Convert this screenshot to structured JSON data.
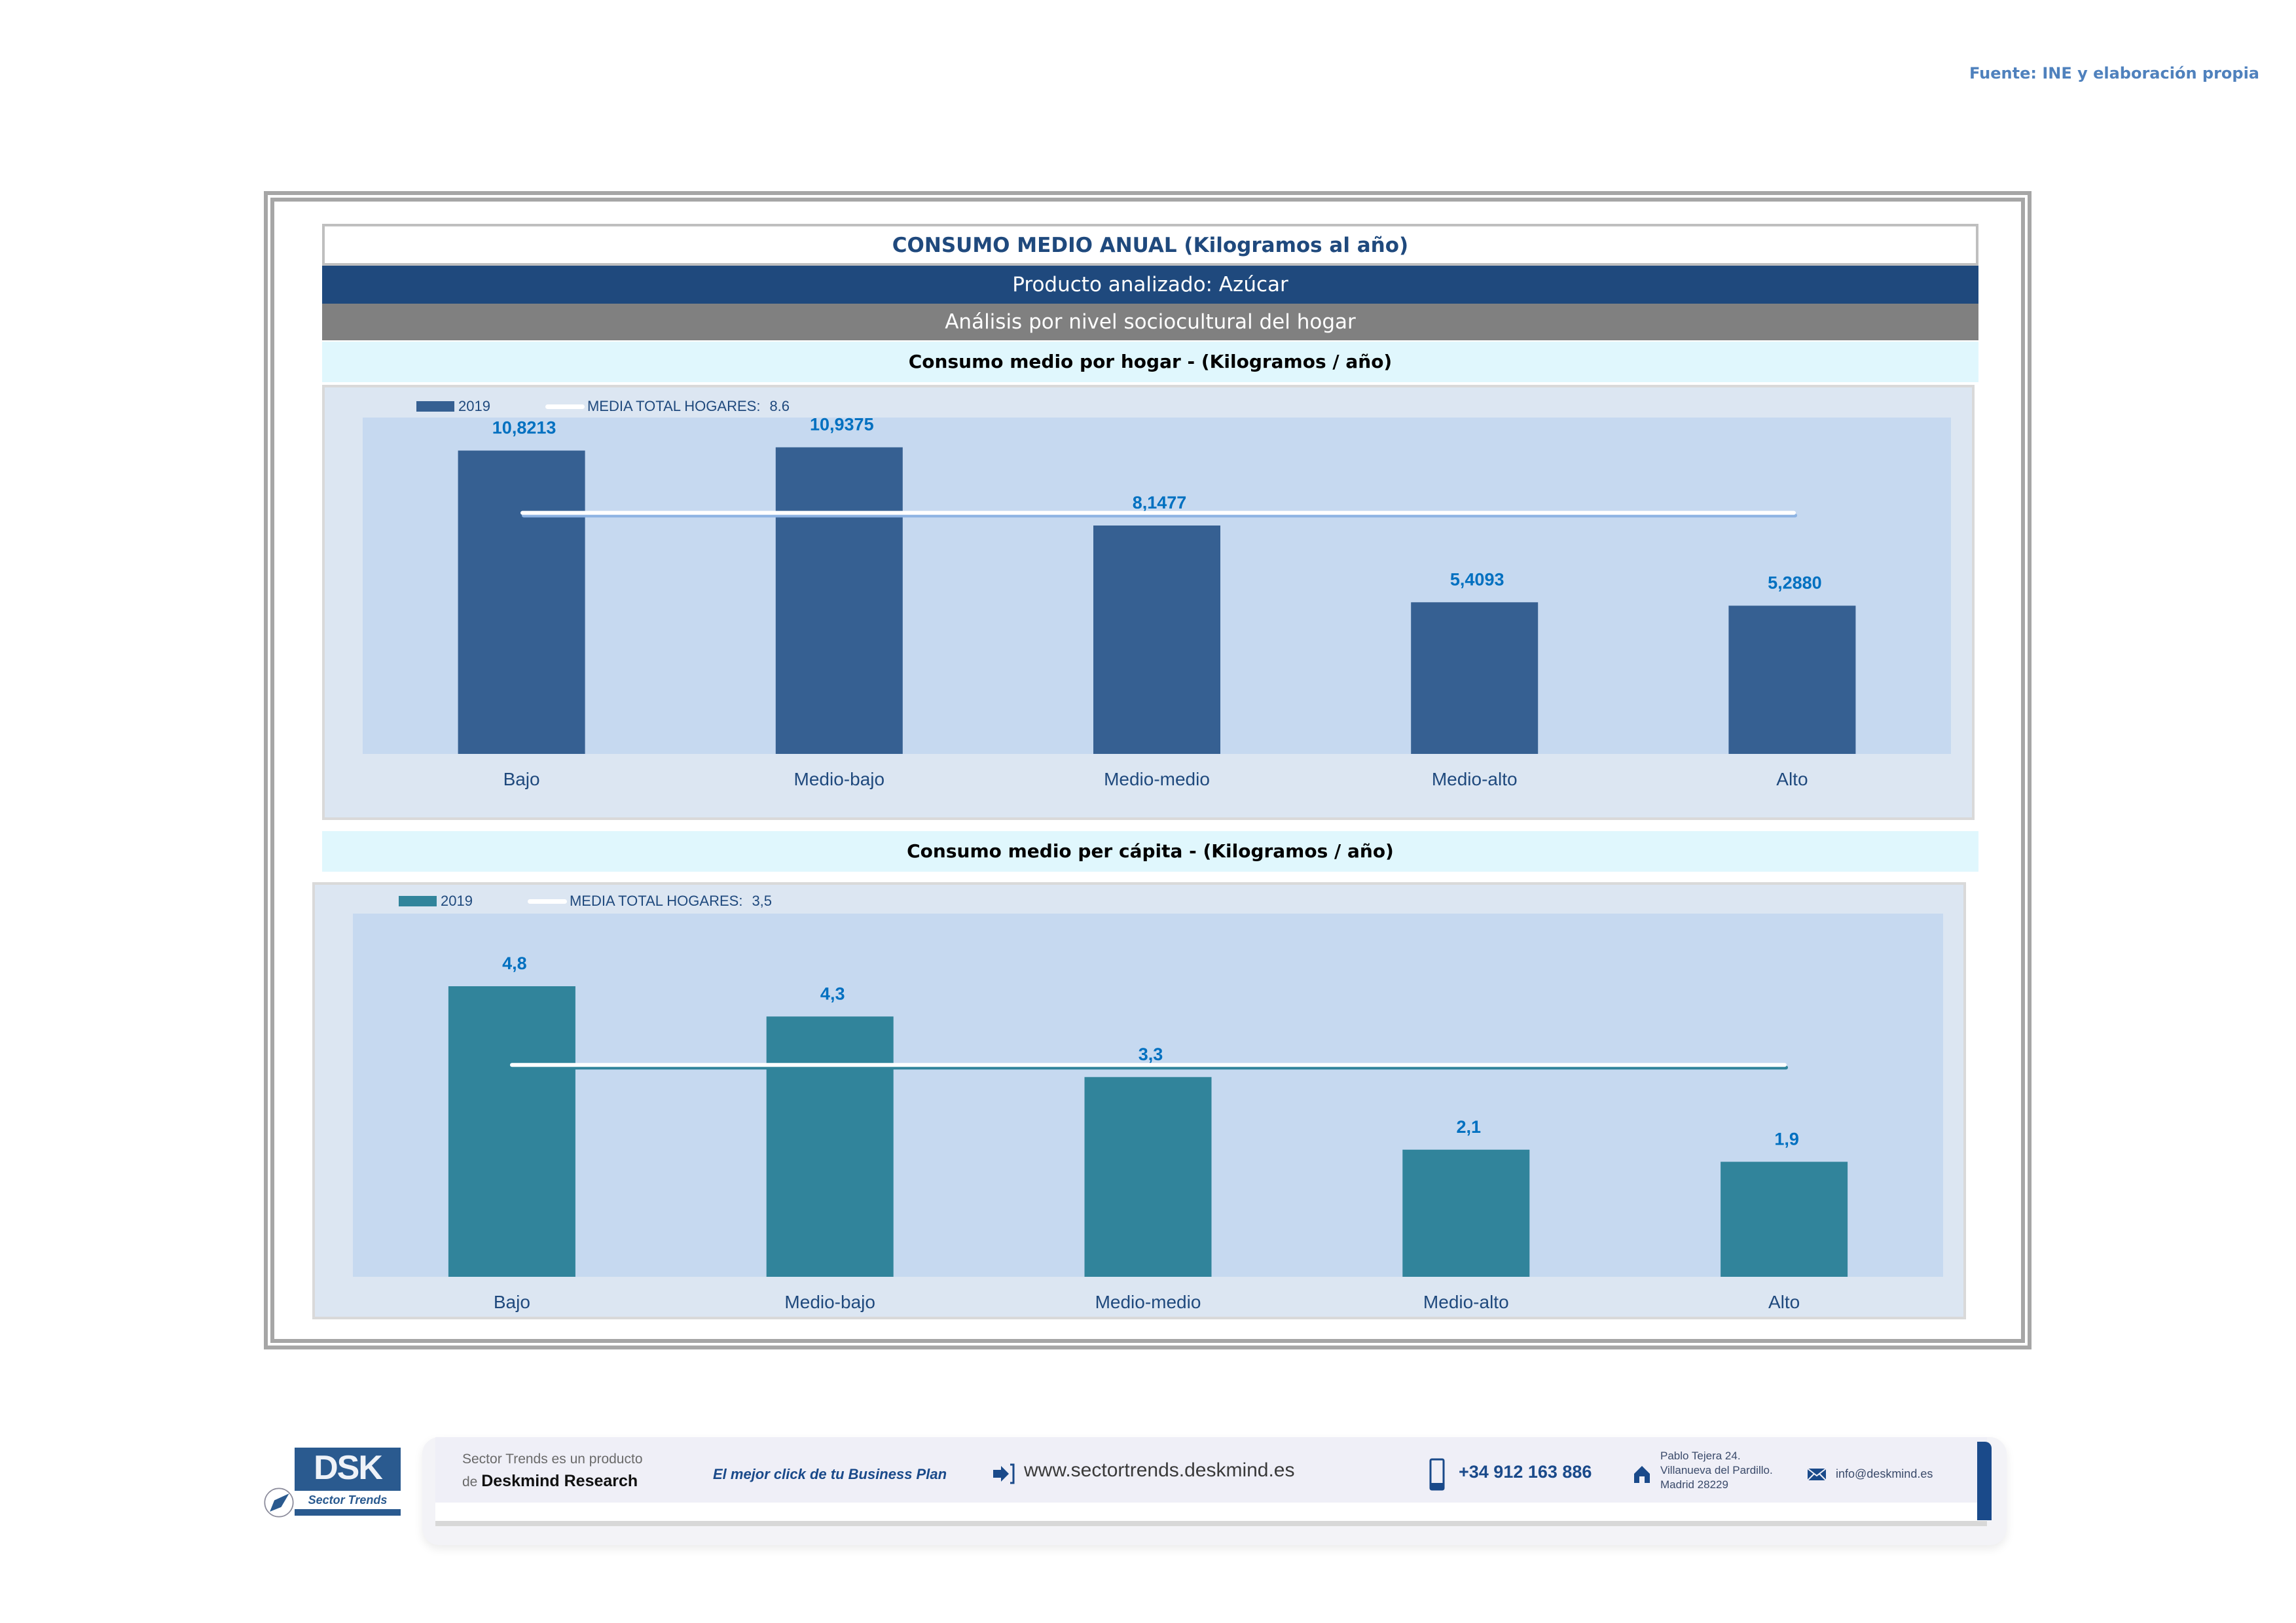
{
  "source_note": "Fuente: INE y elaboración propia",
  "header": {
    "title": "CONSUMO MEDIO ANUAL (Kilogramos al año)",
    "product": "Producto analizado: Azúcar",
    "analysis": "Análisis por nivel sociocultural del hogar"
  },
  "colors": {
    "bar_hogar": "#366092",
    "bar_capita": "#31849b",
    "label": "#0070c0",
    "axis_text": "#1f497d",
    "mean_line": "#ffffff",
    "plot_bg": "#c6d9f0",
    "panel_bg": "#dce6f2"
  },
  "chart_data": [
    {
      "type": "bar",
      "title": "Consumo medio por hogar -  (Kilogramos / año)",
      "categories": [
        "Bajo",
        "Medio-bajo",
        "Medio-medio",
        "Medio-alto",
        "Alto"
      ],
      "series": [
        {
          "name": "2019",
          "values": [
            10.8213,
            10.9375,
            8.1477,
            5.4093,
            5.288
          ]
        }
      ],
      "data_labels": [
        "10,8213",
        "10,9375",
        "8,1477",
        "5,4093",
        "5,2880"
      ],
      "reference_line": {
        "name": "MEDIA TOTAL  HOGARES:",
        "value": 8.6,
        "label": "8.6"
      },
      "legend_position": "top-left",
      "ylim": [
        0,
        12
      ],
      "grid": false,
      "xlabel": "",
      "ylabel": ""
    },
    {
      "type": "bar",
      "title": "Consumo medio per cápita -  (Kilogramos / año)",
      "categories": [
        "Bajo",
        "Medio-bajo",
        "Medio-medio",
        "Medio-alto",
        "Alto"
      ],
      "series": [
        {
          "name": "2019",
          "values": [
            4.8,
            4.3,
            3.3,
            2.1,
            1.9
          ]
        }
      ],
      "data_labels": [
        "4,8",
        "4,3",
        "3,3",
        "2,1",
        "1,9"
      ],
      "reference_line": {
        "name": "MEDIA TOTAL  HOGARES:",
        "value": 3.5,
        "label": "3,5"
      },
      "legend_position": "top-left",
      "ylim": [
        0,
        6
      ],
      "grid": false,
      "xlabel": "",
      "ylabel": ""
    }
  ],
  "footer": {
    "logo_text": "DSK",
    "logo_sub": "Sector Trends",
    "product_line1": "Sector Trends es un producto",
    "product_line2_prefix": "de",
    "product_line2_brand": "Deskmind Research",
    "slogan": "El mejor click de tu Business Plan",
    "website": "www.sectortrends.deskmind.es",
    "phone": "+34 912 163 886",
    "address_line1": "Pablo Tejera 24.",
    "address_line2": "Villanueva del Pardillo.",
    "address_line3": "Madrid 28229",
    "email": "info@deskmind.es",
    "icons": [
      "link-arrow-icon",
      "mobile-phone-icon",
      "home-icon",
      "envelope-icon",
      "rocket-icon"
    ]
  }
}
